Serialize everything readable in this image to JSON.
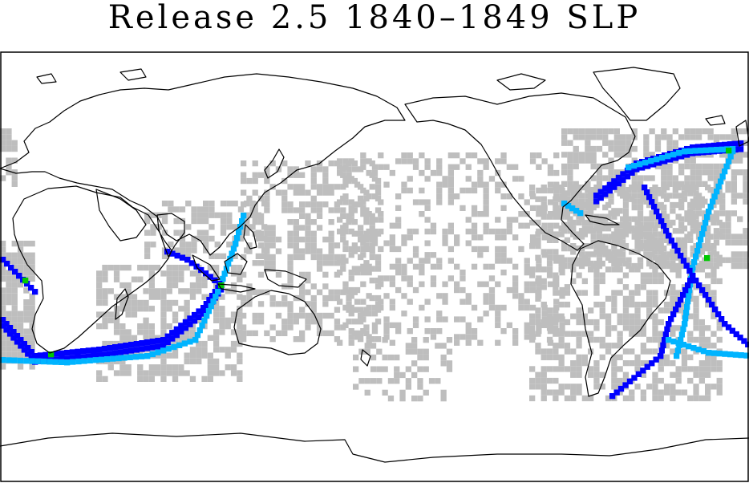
{
  "title": "Release 2.5 1840–1849 SLP",
  "colors": {
    "background": "#ffffff",
    "coastline": "#000000",
    "frame": "#000000",
    "low_density": "#bebebe",
    "medium_density": "#0000ff",
    "high_density": "#00b4ff",
    "peak_density": "#00c800"
  }
}
